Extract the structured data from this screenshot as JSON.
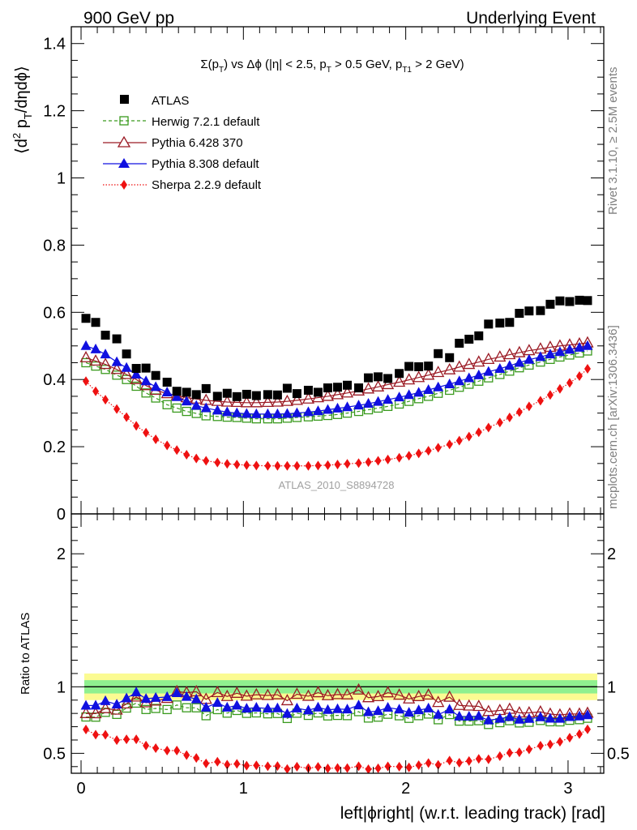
{
  "header": {
    "left": "900 GeV pp",
    "right": "Underlying Event"
  },
  "side_labels": {
    "rivet": "Rivet 3.1.10, ≥ 2.5M events",
    "mcplots": "mcplots.cern.ch [arXiv:1306.3436]"
  },
  "watermark": "ATLAS_2010_S8894728",
  "legend_entries": [
    "ATLAS",
    "Herwig 7.2.1 default",
    "Pythia 6.428 370",
    "Pythia 8.308 default",
    "Sherpa 2.2.9 default"
  ],
  "colors": {
    "atlas": "#000000",
    "herwig": "#3a9a1e",
    "pythia6": "#9b1b25",
    "pythia8": "#1010e0",
    "sherpa": "#ee1111",
    "band_inner": "#8ff08f",
    "band_outer": "#fbfb92"
  },
  "chart_data": {
    "type": "scatter",
    "title_parts": {
      "a": "Σ(p",
      "a_sub": "T",
      "b": ") vs Δϕ (|η| < 2.5, p",
      "b_sub": "T",
      "c": " > 0.5 GeV, p",
      "c_sub": "T1",
      "d": " > 2 GeV)"
    },
    "ylabel_main": {
      "a": "⟨d",
      "sup": "2",
      "b": " p",
      "sub": "T",
      "c": "/dηdϕ⟩"
    },
    "ylabel_ratio": "Ratio to ATLAS",
    "xlabel": "left|ϕright| (w.r.t. leading track) [rad]",
    "xlim": [
      -0.06,
      3.22
    ],
    "ylim_main": [
      0,
      1.45
    ],
    "ylim_ratio": [
      0.35,
      2.3
    ],
    "x_ticks": [
      "0",
      "1",
      "2",
      "3"
    ],
    "y_ticks_main": [
      "0",
      "0.2",
      "0.4",
      "0.6",
      "0.8",
      "1",
      "1.2",
      "1.4"
    ],
    "y_ticks_ratio": [
      "0.5",
      "1",
      "2"
    ],
    "x": [
      0.03,
      0.09,
      0.15,
      0.22,
      0.28,
      0.34,
      0.4,
      0.46,
      0.53,
      0.59,
      0.65,
      0.71,
      0.77,
      0.84,
      0.9,
      0.96,
      1.02,
      1.08,
      1.15,
      1.21,
      1.27,
      1.33,
      1.4,
      1.46,
      1.52,
      1.58,
      1.64,
      1.71,
      1.77,
      1.83,
      1.89,
      1.96,
      2.02,
      2.08,
      2.14,
      2.2,
      2.27,
      2.33,
      2.39,
      2.45,
      2.51,
      2.58,
      2.64,
      2.7,
      2.76,
      2.83,
      2.89,
      2.95,
      3.01,
      3.07,
      3.12
    ],
    "series": [
      {
        "name": "ATLAS",
        "values": [
          0.582,
          0.57,
          0.532,
          0.521,
          0.476,
          0.433,
          0.434,
          0.412,
          0.392,
          0.365,
          0.362,
          0.355,
          0.373,
          0.35,
          0.359,
          0.349,
          0.356,
          0.352,
          0.355,
          0.354,
          0.374,
          0.358,
          0.368,
          0.362,
          0.375,
          0.377,
          0.383,
          0.375,
          0.405,
          0.408,
          0.403,
          0.418,
          0.439,
          0.438,
          0.44,
          0.477,
          0.465,
          0.508,
          0.52,
          0.53,
          0.565,
          0.568,
          0.57,
          0.597,
          0.604,
          0.605,
          0.624,
          0.634,
          0.632,
          0.636,
          0.635
        ]
      },
      {
        "name": "Herwig 7.2.1 default",
        "values": [
          0.45,
          0.44,
          0.43,
          0.413,
          0.4,
          0.38,
          0.36,
          0.345,
          0.325,
          0.315,
          0.305,
          0.299,
          0.292,
          0.29,
          0.288,
          0.287,
          0.285,
          0.283,
          0.283,
          0.283,
          0.285,
          0.287,
          0.289,
          0.291,
          0.293,
          0.296,
          0.3,
          0.305,
          0.31,
          0.315,
          0.32,
          0.327,
          0.335,
          0.343,
          0.35,
          0.359,
          0.368,
          0.377,
          0.386,
          0.395,
          0.405,
          0.415,
          0.425,
          0.435,
          0.443,
          0.452,
          0.46,
          0.467,
          0.473,
          0.479,
          0.485
        ]
      },
      {
        "name": "Pythia 6.428 370",
        "values": [
          0.465,
          0.455,
          0.445,
          0.43,
          0.415,
          0.4,
          0.382,
          0.368,
          0.358,
          0.352,
          0.346,
          0.342,
          0.338,
          0.335,
          0.333,
          0.332,
          0.331,
          0.331,
          0.332,
          0.333,
          0.335,
          0.338,
          0.342,
          0.346,
          0.35,
          0.355,
          0.36,
          0.366,
          0.372,
          0.378,
          0.385,
          0.392,
          0.399,
          0.406,
          0.413,
          0.421,
          0.429,
          0.437,
          0.445,
          0.452,
          0.46,
          0.467,
          0.474,
          0.48,
          0.486,
          0.491,
          0.496,
          0.5,
          0.503,
          0.506,
          0.509
        ]
      },
      {
        "name": "Pythia 8.308 default",
        "values": [
          0.5,
          0.49,
          0.475,
          0.452,
          0.435,
          0.415,
          0.395,
          0.378,
          0.362,
          0.348,
          0.335,
          0.322,
          0.315,
          0.308,
          0.303,
          0.3,
          0.298,
          0.297,
          0.297,
          0.297,
          0.298,
          0.3,
          0.303,
          0.306,
          0.31,
          0.314,
          0.318,
          0.323,
          0.328,
          0.334,
          0.34,
          0.347,
          0.354,
          0.361,
          0.369,
          0.377,
          0.386,
          0.395,
          0.404,
          0.413,
          0.423,
          0.432,
          0.441,
          0.45,
          0.459,
          0.467,
          0.475,
          0.482,
          0.489,
          0.495,
          0.5
        ]
      },
      {
        "name": "Sherpa 2.2.9 default",
        "values": [
          0.395,
          0.365,
          0.34,
          0.312,
          0.288,
          0.262,
          0.242,
          0.222,
          0.204,
          0.19,
          0.176,
          0.165,
          0.158,
          0.153,
          0.149,
          0.147,
          0.145,
          0.144,
          0.143,
          0.143,
          0.143,
          0.143,
          0.143,
          0.144,
          0.145,
          0.147,
          0.149,
          0.151,
          0.154,
          0.158,
          0.162,
          0.167,
          0.173,
          0.18,
          0.188,
          0.197,
          0.207,
          0.218,
          0.23,
          0.243,
          0.257,
          0.272,
          0.287,
          0.303,
          0.32,
          0.337,
          0.354,
          0.372,
          0.39,
          0.41,
          0.432
        ]
      }
    ],
    "ratio_band": {
      "inner": [
        0.95,
        1.05
      ],
      "outer": [
        0.9,
        1.1
      ]
    }
  }
}
